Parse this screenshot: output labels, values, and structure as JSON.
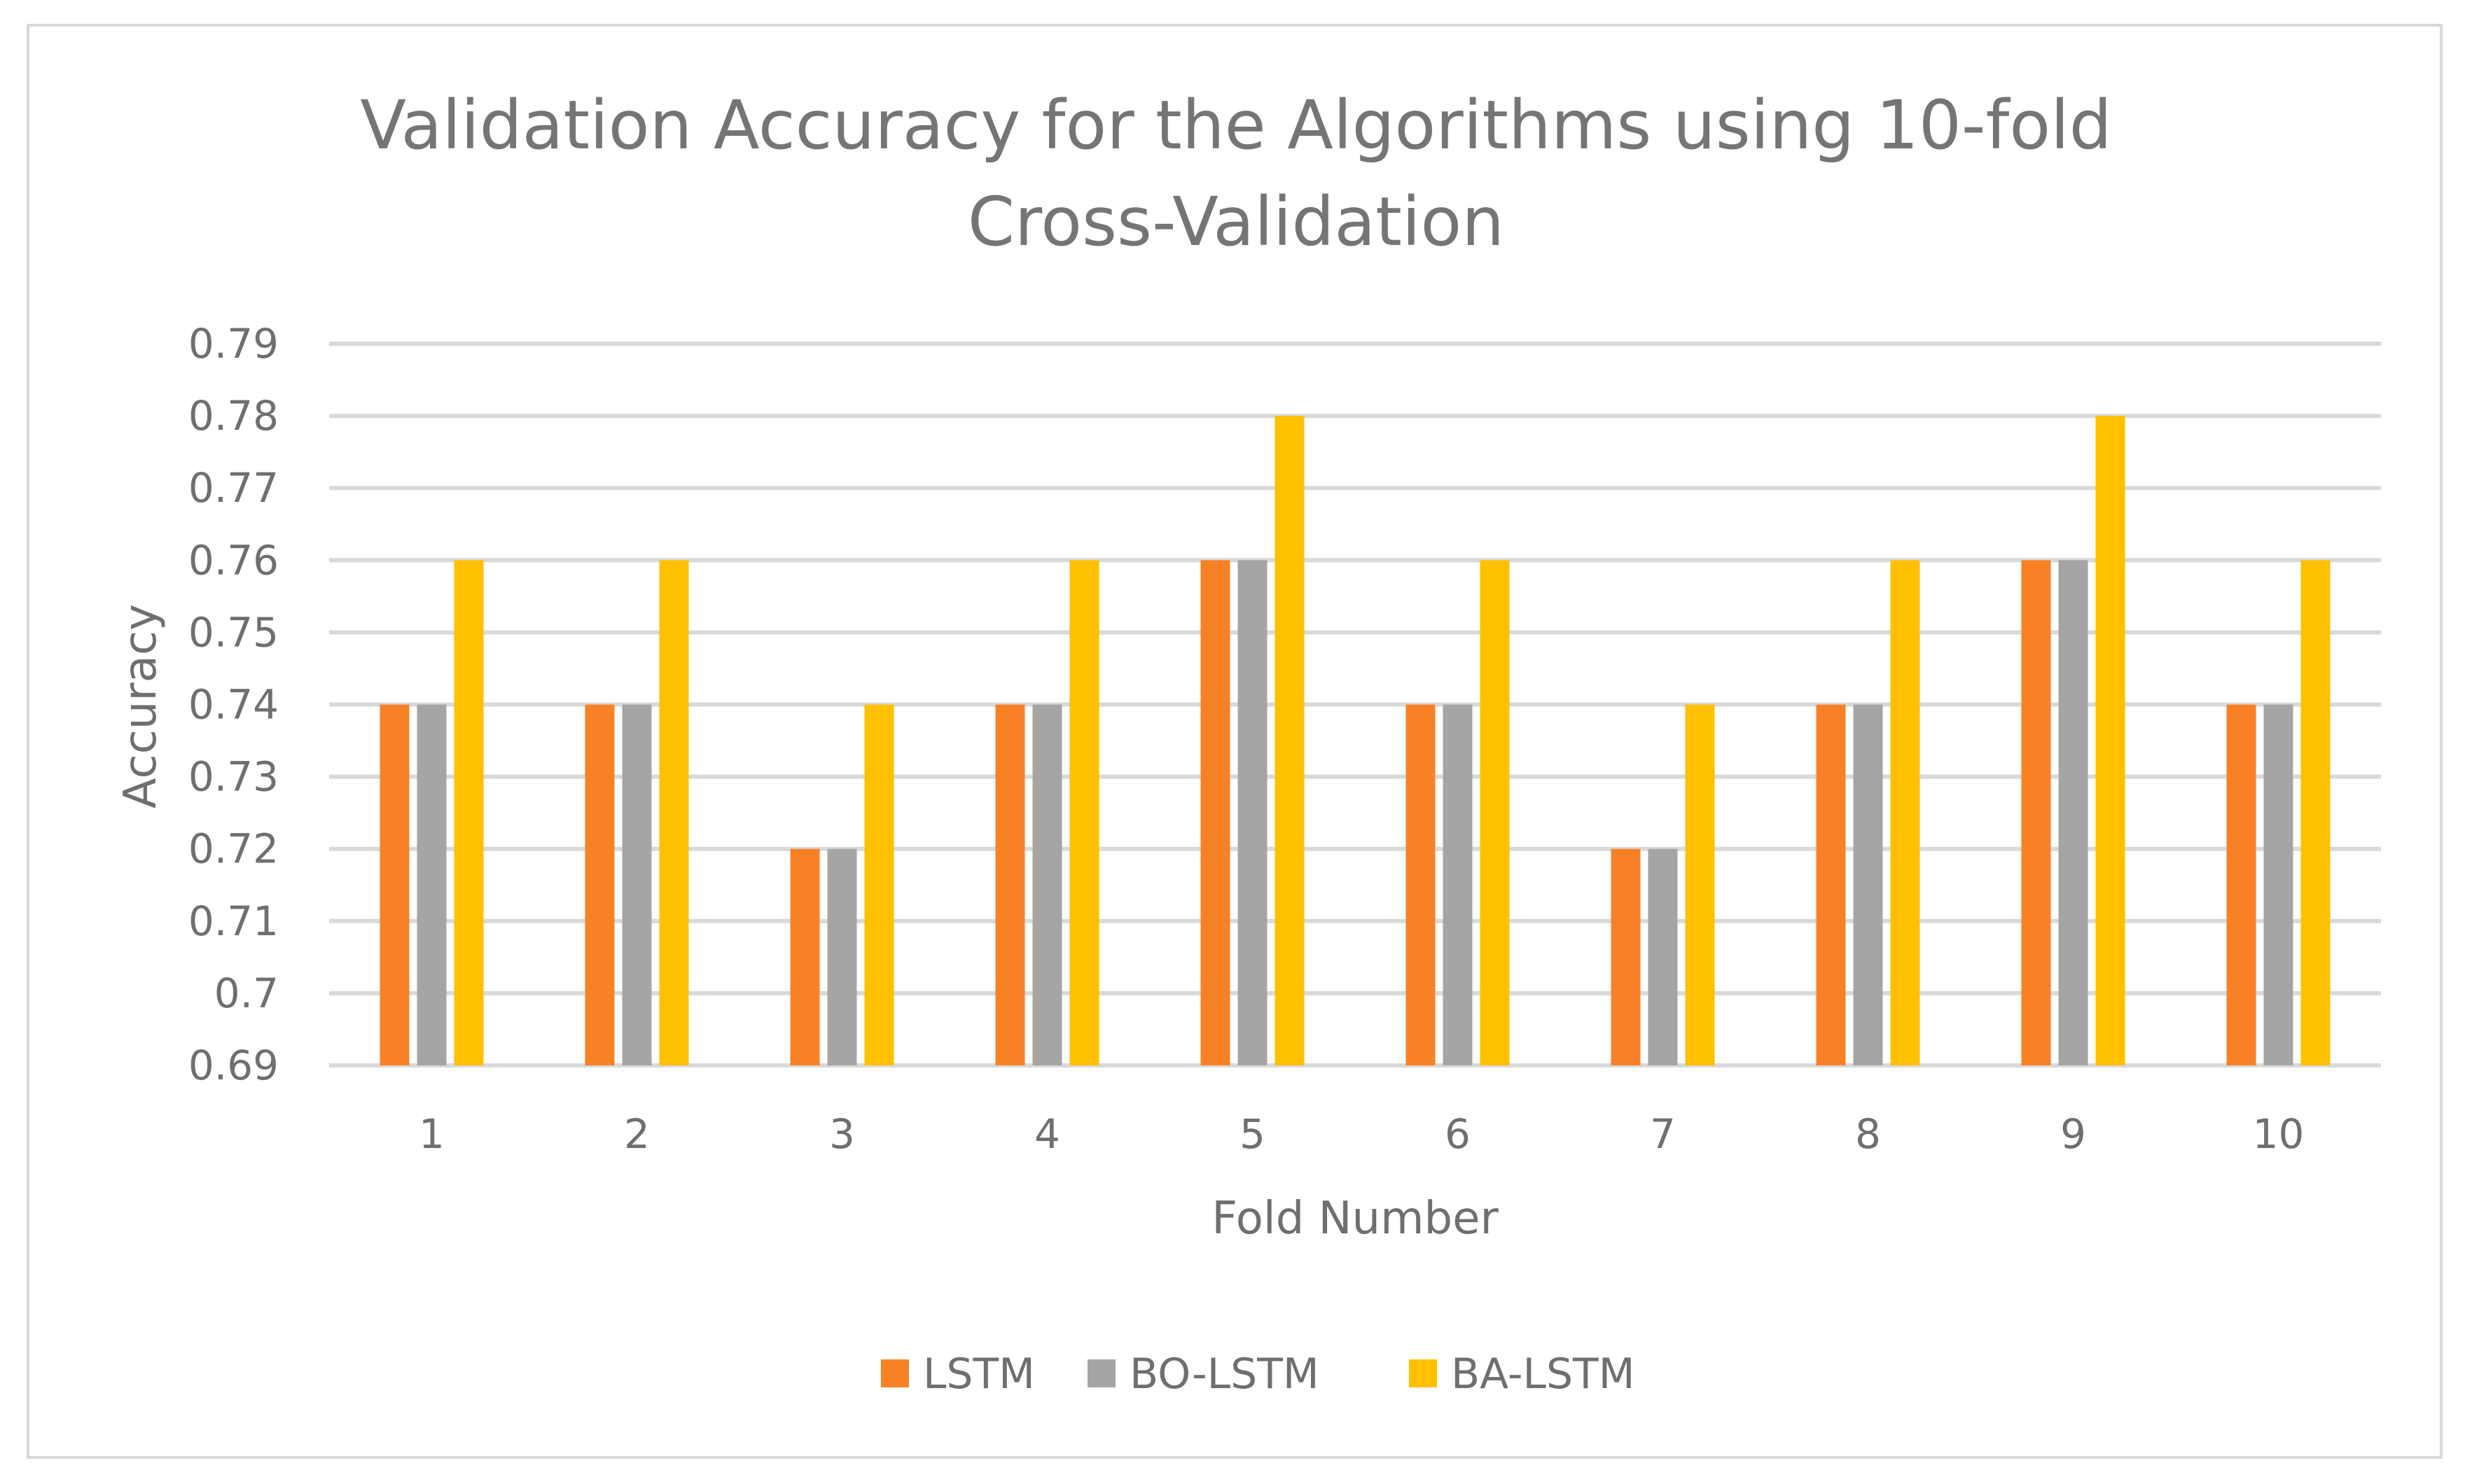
{
  "chart_data": {
    "type": "bar",
    "title_lines": [
      "Validation Accuracy for the Algorithms using 10-fold",
      "Cross-Validation"
    ],
    "xlabel": "Fold Number",
    "ylabel": "Accuracy",
    "categories": [
      "1",
      "2",
      "3",
      "4",
      "5",
      "6",
      "7",
      "8",
      "9",
      "10"
    ],
    "y_ticks": [
      "0.69",
      "0.7",
      "0.71",
      "0.72",
      "0.73",
      "0.74",
      "0.75",
      "0.76",
      "0.77",
      "0.78",
      "0.79"
    ],
    "ylim": [
      0.69,
      0.79
    ],
    "grid": true,
    "legend_position": "bottom",
    "series": [
      {
        "name": "LSTM",
        "color": "#f98125",
        "values": [
          0.74,
          0.74,
          0.72,
          0.74,
          0.76,
          0.74,
          0.72,
          0.74,
          0.76,
          0.74
        ]
      },
      {
        "name": "BO-LSTM",
        "color": "#a5a5a5",
        "values": [
          0.74,
          0.74,
          0.72,
          0.74,
          0.76,
          0.74,
          0.72,
          0.74,
          0.76,
          0.74
        ]
      },
      {
        "name": "BA-LSTM",
        "color": "#ffc000",
        "values": [
          0.76,
          0.76,
          0.74,
          0.76,
          0.78,
          0.76,
          0.74,
          0.76,
          0.78,
          0.76
        ]
      }
    ]
  }
}
